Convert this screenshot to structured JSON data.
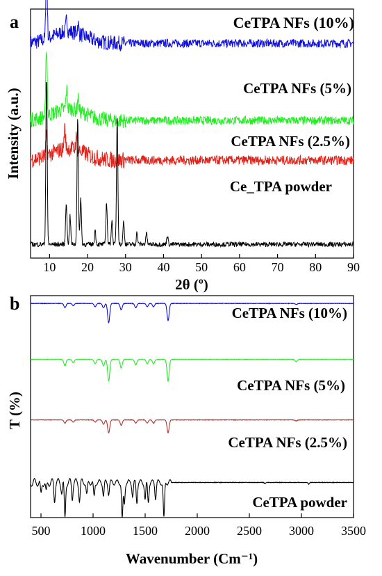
{
  "chart_data": [
    {
      "panel": "a",
      "type": "line",
      "xlabel": "2θ (º)",
      "ylabel": "Intensity (a.u.)",
      "xlim": [
        5,
        90
      ],
      "xticks": [
        10,
        20,
        30,
        40,
        50,
        60,
        70,
        80,
        90
      ],
      "y_ticks_shown": false,
      "legend": "labels placed beside each trace",
      "series": [
        {
          "name": "CeTPA NFs (10%)",
          "color": "#1010dd",
          "baseline": 0.88,
          "peaks": [
            [
              9.2,
              0.35
            ],
            [
              14.5,
              0.06
            ],
            [
              17.5,
              0.04
            ]
          ]
        },
        {
          "name": "CeTPA NFs (5%)",
          "color": "#22ee22",
          "baseline": 0.55,
          "peaks": [
            [
              9.2,
              0.3
            ],
            [
              14.5,
              0.08
            ],
            [
              17.5,
              0.05
            ]
          ]
        },
        {
          "name": "CeTPA NFs (2.5%)",
          "color": "#e0241b",
          "baseline": 0.38,
          "peaks": [
            [
              9.2,
              0.08
            ],
            [
              14.0,
              0.09
            ],
            [
              17.0,
              0.05
            ]
          ]
        },
        {
          "name": "Ce_TPA powder",
          "color": "#000000",
          "baseline": 0.02,
          "peaks": [
            [
              9.2,
              0.72
            ],
            [
              14.4,
              0.18
            ],
            [
              15.4,
              0.12
            ],
            [
              17.4,
              0.55
            ],
            [
              18.2,
              0.2
            ],
            [
              22.0,
              0.06
            ],
            [
              25.0,
              0.18
            ],
            [
              26.4,
              0.1
            ],
            [
              27.8,
              0.55
            ],
            [
              29.5,
              0.1
            ],
            [
              33.0,
              0.05
            ],
            [
              35.5,
              0.05
            ],
            [
              41.0,
              0.04
            ]
          ]
        }
      ]
    },
    {
      "panel": "b",
      "type": "line",
      "xlabel": "Wavenumber (Cm⁻¹)",
      "ylabel": "T (%)",
      "xlim": [
        400,
        3500
      ],
      "xticks": [
        500,
        1000,
        1500,
        2000,
        2500,
        3000,
        3500
      ],
      "y_ticks_shown": false,
      "legend": "labels placed beside each trace",
      "series": [
        {
          "name": "CeTPA NFs (10%)",
          "color": "#1010dd",
          "baseline": 0.98,
          "dips": [
            [
              730,
              0.02
            ],
            [
              810,
              0.01
            ],
            [
              1020,
              0.015
            ],
            [
              1100,
              0.02
            ],
            [
              1150,
              0.09
            ],
            [
              1270,
              0.03
            ],
            [
              1410,
              0.02
            ],
            [
              1520,
              0.015
            ],
            [
              1580,
              0.015
            ],
            [
              1720,
              0.08
            ],
            [
              2950,
              0.005
            ]
          ]
        },
        {
          "name": "CeTPA NFs (5%)",
          "color": "#22ee22",
          "baseline": 0.72,
          "dips": [
            [
              730,
              0.03
            ],
            [
              810,
              0.015
            ],
            [
              1020,
              0.02
            ],
            [
              1100,
              0.03
            ],
            [
              1150,
              0.1
            ],
            [
              1270,
              0.04
            ],
            [
              1410,
              0.025
            ],
            [
              1520,
              0.02
            ],
            [
              1580,
              0.02
            ],
            [
              1720,
              0.1
            ],
            [
              2950,
              0.01
            ]
          ]
        },
        {
          "name": "CeTPA NFs (2.5%)",
          "color": "#b5302a",
          "baseline": 0.44,
          "dips": [
            [
              730,
              0.015
            ],
            [
              810,
              0.01
            ],
            [
              1020,
              0.01
            ],
            [
              1100,
              0.02
            ],
            [
              1150,
              0.06
            ],
            [
              1270,
              0.025
            ],
            [
              1410,
              0.015
            ],
            [
              1520,
              0.015
            ],
            [
              1580,
              0.015
            ],
            [
              1720,
              0.06
            ],
            [
              2950,
              0.005
            ]
          ]
        },
        {
          "name": "CeTPA powder",
          "color": "#000000",
          "baseline": 0.15,
          "dips": [
            [
              500,
              0.06
            ],
            [
              550,
              0.05
            ],
            [
              630,
              0.08
            ],
            [
              700,
              0.04
            ],
            [
              730,
              0.17
            ],
            [
              800,
              0.07
            ],
            [
              870,
              0.08
            ],
            [
              940,
              0.06
            ],
            [
              1010,
              0.07
            ],
            [
              1100,
              0.06
            ],
            [
              1150,
              0.05
            ],
            [
              1280,
              0.17
            ],
            [
              1300,
              0.1
            ],
            [
              1380,
              0.06
            ],
            [
              1420,
              0.09
            ],
            [
              1500,
              0.08
            ],
            [
              1530,
              0.09
            ],
            [
              1600,
              0.07
            ],
            [
              1680,
              0.17
            ],
            [
              2650,
              0.005
            ],
            [
              3070,
              0.008
            ]
          ]
        }
      ]
    }
  ]
}
